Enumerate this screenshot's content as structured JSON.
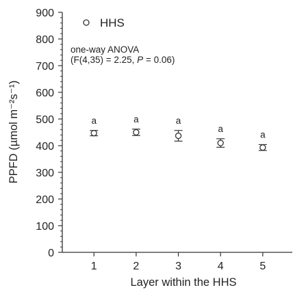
{
  "chart_data": {
    "type": "scatter",
    "xlabel": "Layer within the HHS",
    "ylabel": "PPFD (µmol m⁻²s⁻¹)",
    "xlim": [
      0.25,
      5.7
    ],
    "ylim": [
      0,
      900
    ],
    "yticks": [
      0,
      100,
      200,
      300,
      400,
      500,
      600,
      700,
      800,
      900
    ],
    "xticks": [
      1,
      2,
      3,
      4,
      5
    ],
    "grid": false,
    "legend": {
      "position": "top-left",
      "entries": [
        "HHS"
      ]
    },
    "series": [
      {
        "name": "HHS",
        "marker": "open-circle",
        "x": [
          1,
          2,
          3,
          4,
          5
        ],
        "y": [
          447,
          450,
          437,
          410,
          393
        ],
        "error": [
          10,
          12,
          20,
          16,
          11
        ],
        "letters": [
          "a",
          "a",
          "a",
          "a",
          "a"
        ]
      }
    ],
    "annotation": {
      "line1": "one-way ANOVA",
      "line2_prefix": "(F(4,35) = 2.25, ",
      "line2_p": "P",
      "line2_suffix": " = 0.06)"
    }
  }
}
